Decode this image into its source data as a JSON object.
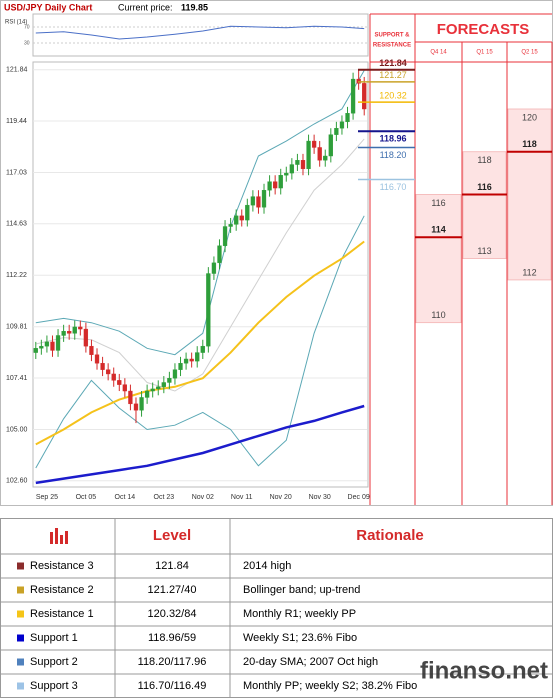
{
  "chart_data": {
    "type": "candlestick",
    "title": "USD/JPY Daily Chart",
    "price_label": "Current price:",
    "current_price": 119.85,
    "categories": [
      null,
      null,
      "Sep 25",
      null,
      null,
      null,
      null,
      null,
      null,
      "Oct 05",
      null,
      null,
      null,
      null,
      null,
      null,
      "Oct 14",
      null,
      null,
      null,
      null,
      null,
      null,
      "Oct 23",
      null,
      null,
      null,
      null,
      null,
      null,
      "Nov 02",
      null,
      null,
      null,
      null,
      null,
      null,
      "Nov 11",
      null,
      null,
      null,
      null,
      null,
      null,
      "Nov 20",
      null,
      null,
      null,
      null,
      null,
      null,
      "Nov 30",
      null,
      null,
      null,
      null,
      null,
      null,
      "Dec 09",
      null
    ],
    "open": [
      108.6,
      108.8,
      108.9,
      109.1,
      108.7,
      109.4,
      109.6,
      109.5,
      109.8,
      109.7,
      108.9,
      108.5,
      108.1,
      107.8,
      107.6,
      107.3,
      107.1,
      106.8,
      106.2,
      105.9,
      106.5,
      106.8,
      106.9,
      107.0,
      107.2,
      107.4,
      107.8,
      108.1,
      108.3,
      108.2,
      108.6,
      108.9,
      112.3,
      112.8,
      113.6,
      114.5,
      114.6,
      115.0,
      114.8,
      115.5,
      115.9,
      115.4,
      116.2,
      116.6,
      116.3,
      116.9,
      117.0,
      117.4,
      117.6,
      117.2,
      118.5,
      118.2,
      117.6,
      117.8,
      118.8,
      119.1,
      119.4,
      119.8,
      121.4,
      121.2
    ],
    "high": [
      109.1,
      109.2,
      109.4,
      109.4,
      109.7,
      109.9,
      109.9,
      110.1,
      110.1,
      110.0,
      109.2,
      108.8,
      108.4,
      108.1,
      107.9,
      107.6,
      107.4,
      107.1,
      106.5,
      106.8,
      107.1,
      107.2,
      107.3,
      107.5,
      107.7,
      108.1,
      108.4,
      108.6,
      108.6,
      108.9,
      109.2,
      112.6,
      113.1,
      113.9,
      114.8,
      114.9,
      115.3,
      115.3,
      115.8,
      116.2,
      116.2,
      116.5,
      116.9,
      116.9,
      117.2,
      117.3,
      117.7,
      117.9,
      117.9,
      118.8,
      118.8,
      118.5,
      118.1,
      119.1,
      119.4,
      119.7,
      120.1,
      121.7,
      121.84,
      121.5
    ],
    "low": [
      108.3,
      108.5,
      108.6,
      108.4,
      108.4,
      109.1,
      109.2,
      109.2,
      109.4,
      108.6,
      108.2,
      107.8,
      107.5,
      107.3,
      107.0,
      106.8,
      106.5,
      105.9,
      105.3,
      105.6,
      106.2,
      106.5,
      106.6,
      106.7,
      106.9,
      107.1,
      107.5,
      107.8,
      107.9,
      107.9,
      108.3,
      108.6,
      112.0,
      112.5,
      113.3,
      114.2,
      114.3,
      114.5,
      114.5,
      115.2,
      115.1,
      115.1,
      115.9,
      116.0,
      116.0,
      116.6,
      116.7,
      117.1,
      116.9,
      116.9,
      117.9,
      117.3,
      117.3,
      117.5,
      118.5,
      118.8,
      119.1,
      119.5,
      120.9,
      119.7
    ],
    "close": [
      108.8,
      108.9,
      109.1,
      108.7,
      109.4,
      109.6,
      109.5,
      109.8,
      109.7,
      108.9,
      108.5,
      108.1,
      107.8,
      107.6,
      107.3,
      107.1,
      106.8,
      106.2,
      105.9,
      106.5,
      106.8,
      106.9,
      107.0,
      107.2,
      107.4,
      107.8,
      108.1,
      108.3,
      108.2,
      108.6,
      108.9,
      112.3,
      112.8,
      113.6,
      114.5,
      114.6,
      115.0,
      114.8,
      115.5,
      115.9,
      115.4,
      116.2,
      116.6,
      116.3,
      116.9,
      117.0,
      117.4,
      117.6,
      117.2,
      118.5,
      118.2,
      117.6,
      117.8,
      118.8,
      119.1,
      119.4,
      119.8,
      121.4,
      121.2,
      120.0
    ],
    "up_color": "#2e9e3a",
    "down_color": "#d42a2a",
    "ylim": [
      101.7,
      122.2
    ],
    "yticks": [
      {
        "value": 102.6,
        "label": "102.60"
      },
      {
        "value": 105,
        "label": "105.00"
      },
      107.41,
      109.81,
      112.22,
      114.63,
      117.03,
      119.44,
      121.84
    ],
    "grid": true,
    "indicators": {
      "x": [
        0,
        5,
        10,
        15,
        20,
        25,
        30,
        35,
        40,
        45,
        50,
        55,
        59
      ],
      "series": [
        {
          "color": "#d0d0d0",
          "line_width": 1,
          "values": [
            109.0,
            109.3,
            109.2,
            108.6,
            107.2,
            106.8,
            107.6,
            109.8,
            112.0,
            114.2,
            116.2,
            117.4,
            118.6
          ]
        },
        {
          "color": "#5ba8b5",
          "line_width": 1,
          "values": [
            110.0,
            110.2,
            110.0,
            109.6,
            108.8,
            108.5,
            109.5,
            114.5,
            117.8,
            118.5,
            119.3,
            120.0,
            121.8
          ]
        },
        {
          "color": "#5ba8b5",
          "line_width": 1,
          "values": [
            103.2,
            105.5,
            107.3,
            106.0,
            105.0,
            105.2,
            105.8,
            105.0,
            103.3,
            104.5,
            109.5,
            113.0,
            115.0
          ]
        },
        {
          "color": "#f5c21b",
          "line_width": 2,
          "values": [
            104.3,
            105.0,
            105.8,
            106.4,
            106.8,
            107.0,
            107.4,
            108.6,
            110.0,
            111.2,
            112.2,
            113.0,
            113.8
          ]
        },
        {
          "color": "#1c1ccc",
          "line_width": 2.5,
          "values": [
            102.5,
            102.7,
            102.9,
            103.1,
            103.3,
            103.6,
            103.9,
            104.3,
            104.7,
            105.1,
            105.4,
            105.8,
            106.1
          ]
        }
      ]
    },
    "rsi": {
      "label": "RSI (14)",
      "ylim": [
        0,
        100
      ],
      "yticks": [
        70,
        30
      ],
      "color": "#4a6fc7",
      "values": [
        55,
        58,
        50,
        40,
        45,
        52,
        60,
        72,
        70,
        68,
        72,
        70,
        66
      ]
    },
    "levels": [
      {
        "value": 121.84,
        "color": "#7a1c1c",
        "bold": true
      },
      {
        "value": 121.27,
        "color": "#c9a227",
        "bold": false
      },
      {
        "value": 120.32,
        "color": "#f2b800",
        "bold": false
      },
      {
        "value": 118.96,
        "color": "#14148c",
        "bold": true
      },
      {
        "value": 118.2,
        "label": "118.20",
        "color": "#3f6fae",
        "bold": false
      },
      {
        "value": 116.7,
        "label": "116.70",
        "color": "#9cc3e0",
        "bold": false
      }
    ],
    "sr_header": [
      "SUPPORT &",
      "RESISTANCE"
    ],
    "forecast_title": "FORECASTS",
    "forecast_color": "#e8313a",
    "forecasts": [
      {
        "period": "Q4 14",
        "low": 110,
        "mid": 114,
        "high": 116
      },
      {
        "period": "Q1 15",
        "low": 113,
        "mid": 116,
        "high": 118
      },
      {
        "period": "Q2 15",
        "low": 112,
        "mid": 118,
        "high": 120
      }
    ]
  },
  "table": {
    "header": [
      "Level",
      "Rationale"
    ],
    "rows": [
      {
        "name": "Resistance 3",
        "color": "#8b2c2c",
        "level": "121.84",
        "rationale": "2014 high"
      },
      {
        "name": "Resistance 2",
        "color": "#c9a227",
        "level": "121.27/40",
        "rationale": "Bollinger band; up-trend"
      },
      {
        "name": "Resistance 1",
        "color": "#f5c518",
        "level": "120.32/84",
        "rationale": "Monthly R1; weekly PP"
      },
      {
        "name": "Support 1",
        "color": "#0000cc",
        "level": "118.96/59",
        "rationale": "Weekly S1; 23.6% Fibo"
      },
      {
        "name": "Support 2",
        "color": "#4f81bd",
        "level": "118.20/117.96",
        "rationale": "20-day SMA; 2007 Oct high"
      },
      {
        "name": "Support 3",
        "color": "#9dc3e6",
        "level": "116.70/116.49",
        "rationale": "Monthly PP; weekly S2; 38.2% Fibo"
      }
    ]
  },
  "watermark": "finanso.net"
}
